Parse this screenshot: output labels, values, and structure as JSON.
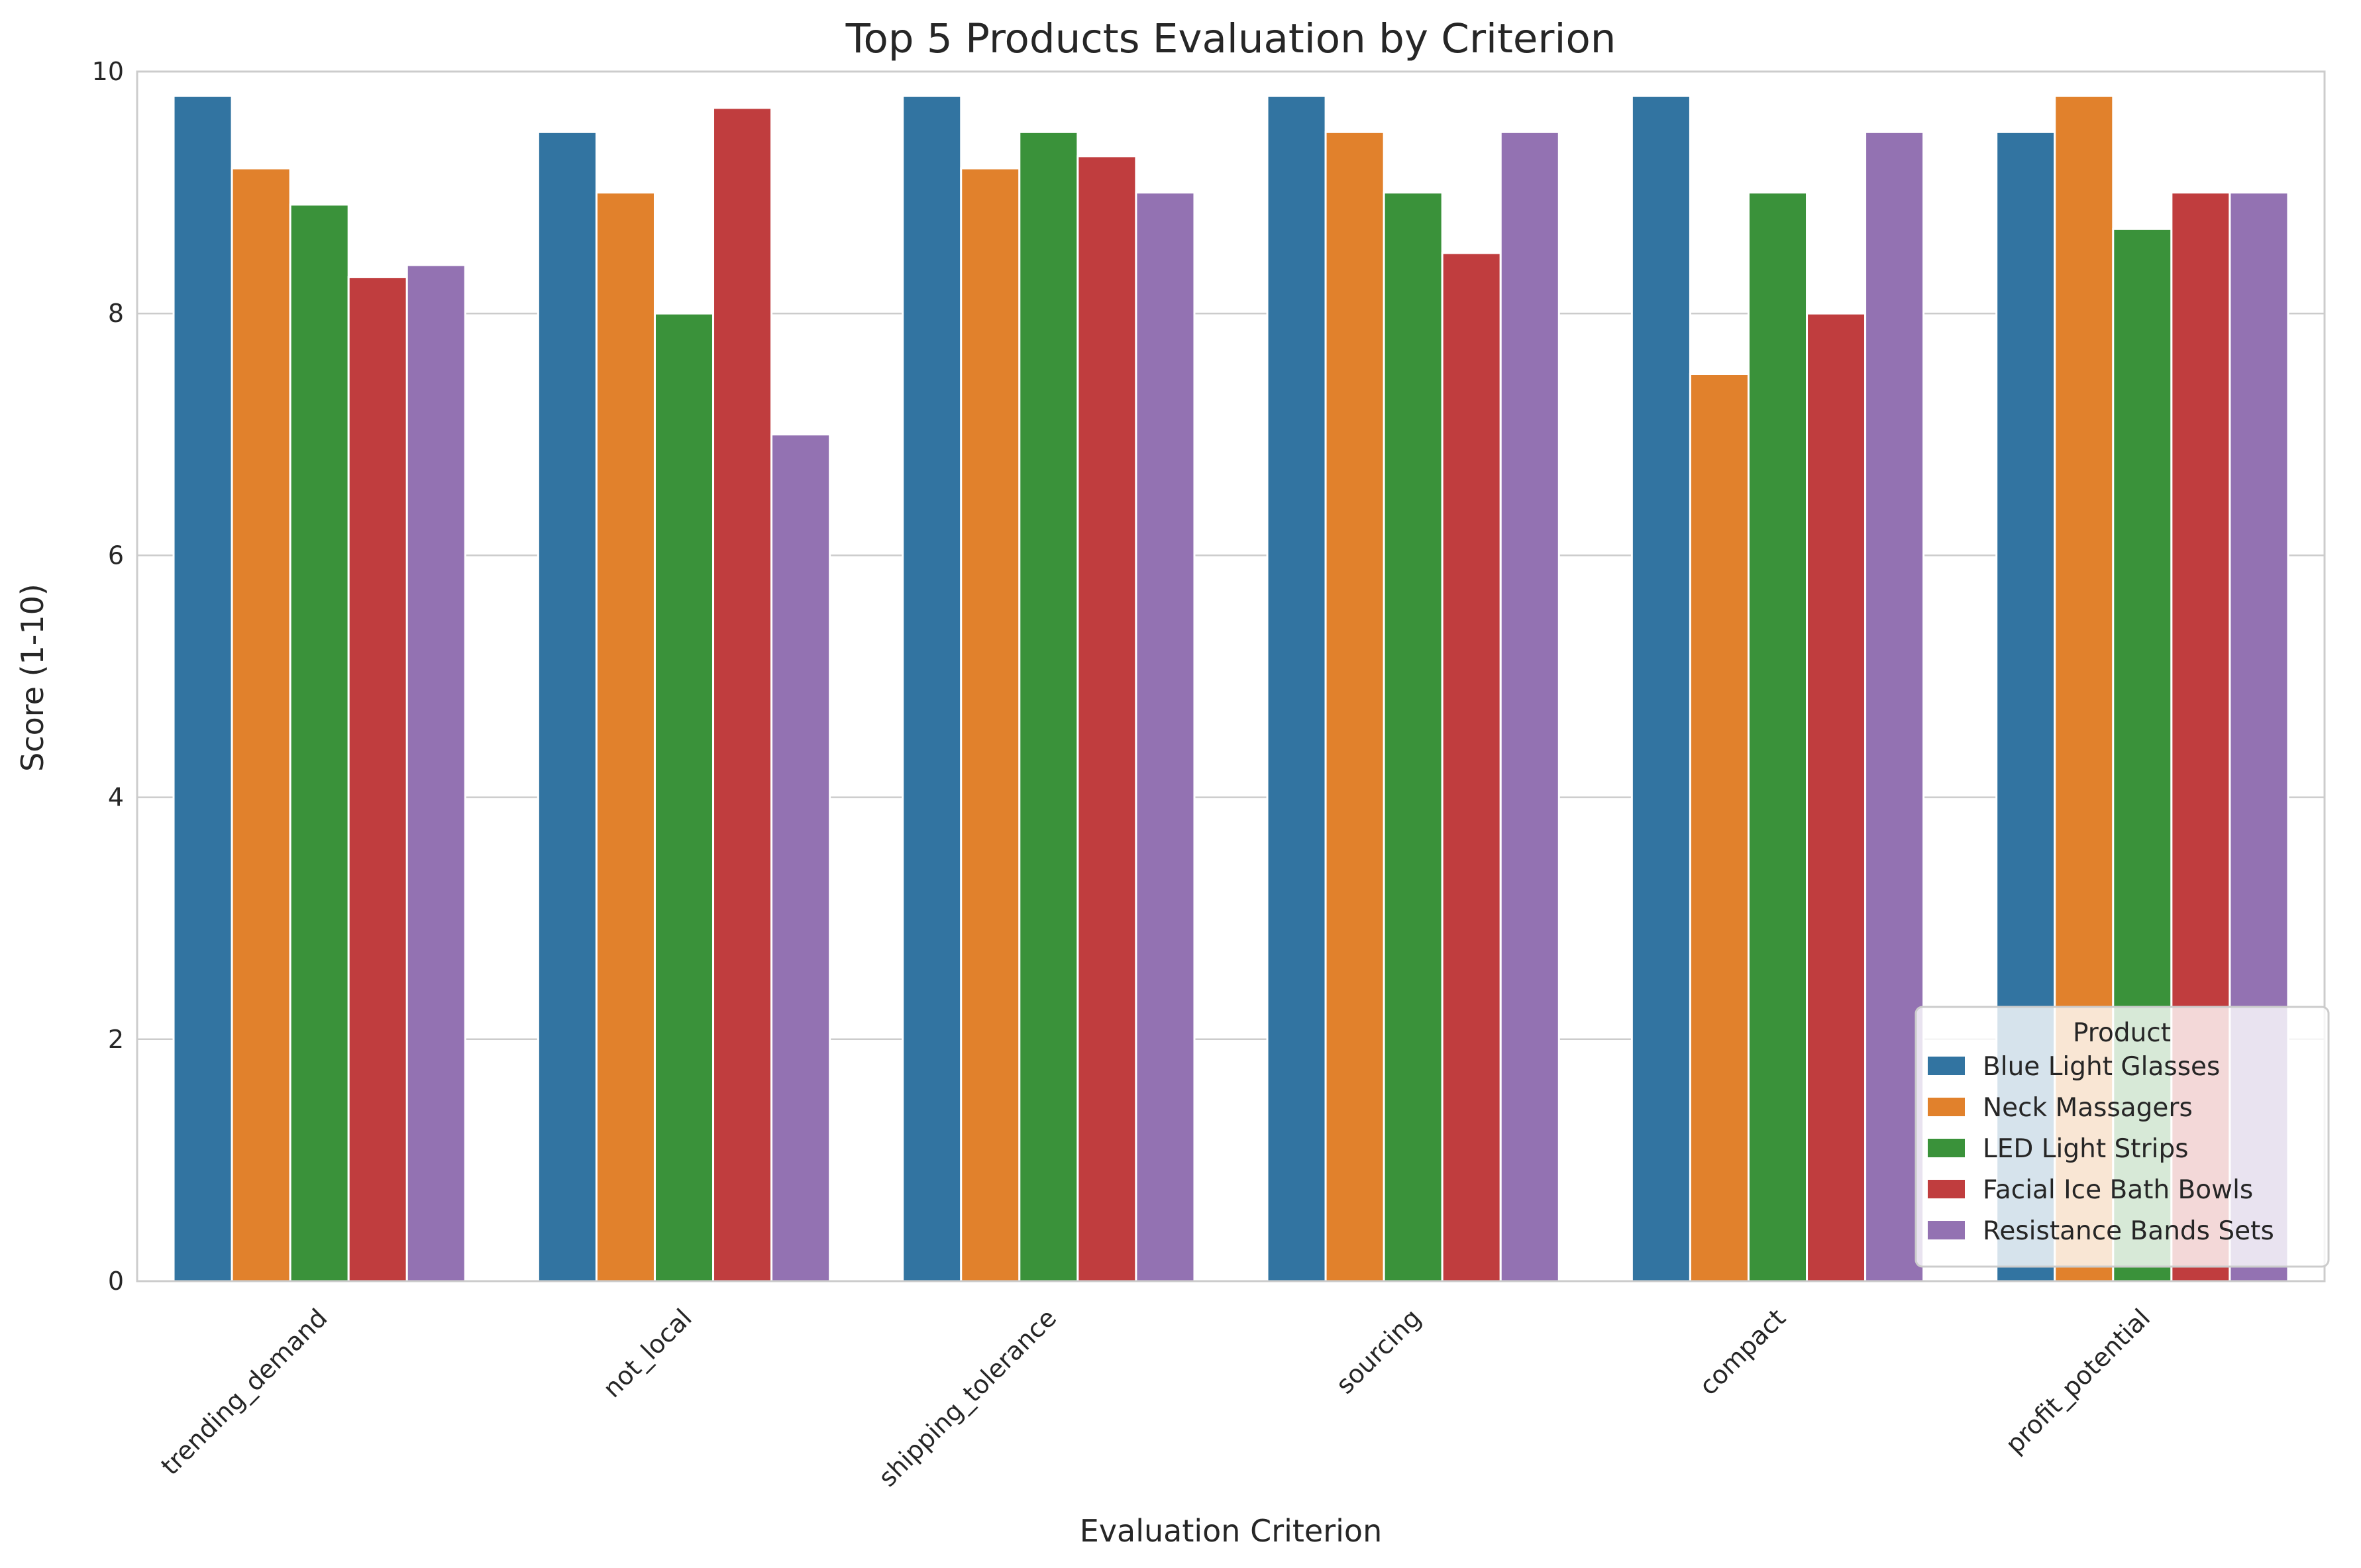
{
  "chart_data": {
    "type": "bar",
    "title": "Top 5 Products Evaluation by Criterion",
    "xlabel": "Evaluation Criterion",
    "ylabel": "Score (1-10)",
    "ylim": [
      0,
      10
    ],
    "yticks": [
      0,
      2,
      4,
      6,
      8,
      10
    ],
    "grid": "horizontal",
    "categories": [
      "trending_demand",
      "not_local",
      "shipping_tolerance",
      "sourcing",
      "compact",
      "profit_potential"
    ],
    "legend": {
      "title": "Product",
      "placement": "lower-right"
    },
    "series": [
      {
        "name": "Blue Light Glasses",
        "color": "#3274a1",
        "values": [
          9.8,
          9.5,
          9.8,
          9.8,
          9.8,
          9.5
        ]
      },
      {
        "name": "Neck Massagers",
        "color": "#e1812c",
        "values": [
          9.2,
          9.0,
          9.2,
          9.5,
          7.5,
          9.8
        ]
      },
      {
        "name": "LED Light Strips",
        "color": "#3a923a",
        "values": [
          8.9,
          8.0,
          9.5,
          9.0,
          9.0,
          8.7
        ]
      },
      {
        "name": "Facial Ice Bath Bowls",
        "color": "#c03d3e",
        "values": [
          8.3,
          9.7,
          9.3,
          8.5,
          8.0,
          9.0
        ]
      },
      {
        "name": "Resistance Bands Sets",
        "color": "#9372b2",
        "values": [
          8.4,
          7.0,
          9.0,
          9.5,
          9.5,
          9.0
        ]
      }
    ]
  }
}
